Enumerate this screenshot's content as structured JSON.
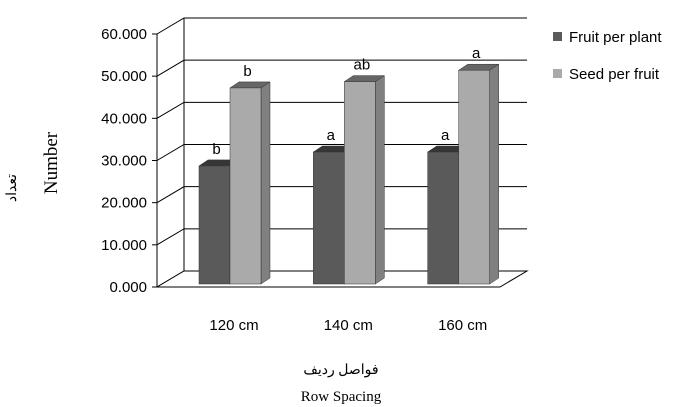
{
  "chart_data": {
    "type": "bar",
    "style": "3d-clustered-column",
    "categories": [
      "120 cm",
      "140 cm",
      "160 cm"
    ],
    "series": [
      {
        "name": "Fruit per plant",
        "values": [
          28,
          31.3,
          31.3
        ],
        "letters": [
          "b",
          "a",
          "a"
        ],
        "color": "#5a5a5a"
      },
      {
        "name": "Seed per fruit",
        "values": [
          46.5,
          48,
          50.7
        ],
        "letters": [
          "b",
          "ab",
          "a"
        ],
        "color": "#aaaaaa"
      }
    ],
    "ylim": [
      0,
      60
    ],
    "yticks": [
      "0.000",
      "10.000",
      "20.000",
      "30.000",
      "40.000",
      "50.000",
      "60.000"
    ],
    "ylabel": "Number",
    "ylabel_alt": "تعداد",
    "xlabel": "Row Spacing",
    "xlabel_alt": "فواصل رديف",
    "grid": true,
    "legend_position": "right"
  }
}
